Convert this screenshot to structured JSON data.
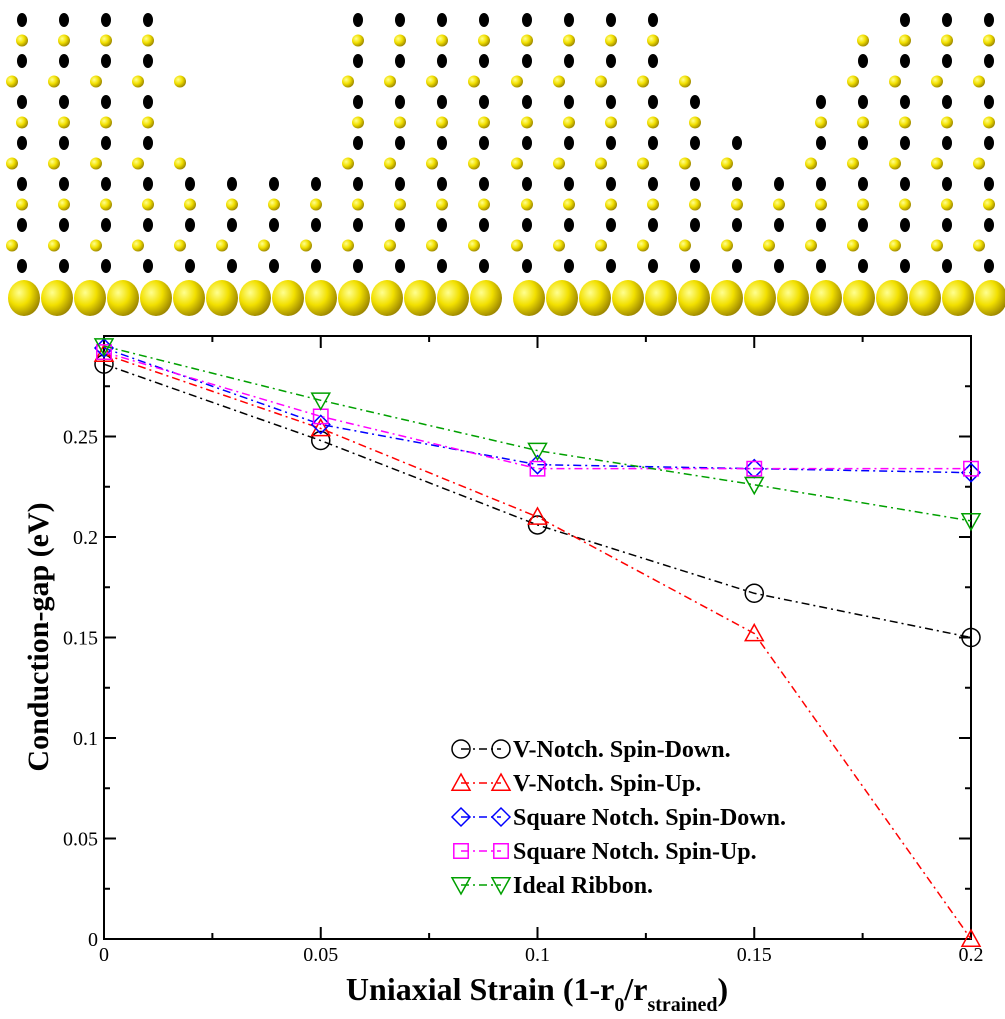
{
  "chart_data": {
    "type": "line",
    "x_label": [
      "Uniaxial Strain (1-r",
      "0",
      "/r",
      "strained",
      ")"
    ],
    "y_label": "Conduction-gap (eV)",
    "x": [
      0,
      0.05,
      0.1,
      0.15,
      0.2
    ],
    "series": [
      {
        "name": "V-Notch. Spin-Down.",
        "color": "#000000",
        "marker": "circle",
        "values": [
          0.286,
          0.248,
          0.206,
          0.172,
          0.15
        ]
      },
      {
        "name": "V-Notch. Spin-Up.",
        "color": "#ff0000",
        "marker": "triangle-up",
        "values": [
          0.291,
          0.254,
          0.21,
          0.152,
          0.0
        ]
      },
      {
        "name": "Square Notch. Spin-Down.",
        "color": "#0000ff",
        "marker": "diamond",
        "values": [
          0.294,
          0.256,
          0.236,
          0.234,
          0.232
        ]
      },
      {
        "name": "Square Notch. Spin-Up.",
        "color": "#ff00ff",
        "marker": "square",
        "values": [
          0.292,
          0.26,
          0.234,
          0.234,
          0.234
        ]
      },
      {
        "name": "Ideal Ribbon.",
        "color": "#00a000",
        "marker": "triangle-down",
        "values": [
          0.295,
          0.268,
          0.243,
          0.226,
          0.208
        ]
      }
    ],
    "xlim": [
      0,
      0.2
    ],
    "ylim": [
      0,
      0.3
    ],
    "xticks": [
      0,
      0.05,
      0.1,
      0.15,
      0.2
    ],
    "yticks": [
      0,
      0.05,
      0.1,
      0.15,
      0.2,
      0.25
    ],
    "xminorticks": [
      0.025,
      0.075,
      0.125,
      0.175
    ],
    "yminorticks": [
      0.025,
      0.075,
      0.125,
      0.175,
      0.225,
      0.275
    ],
    "legend": "lower right"
  }
}
